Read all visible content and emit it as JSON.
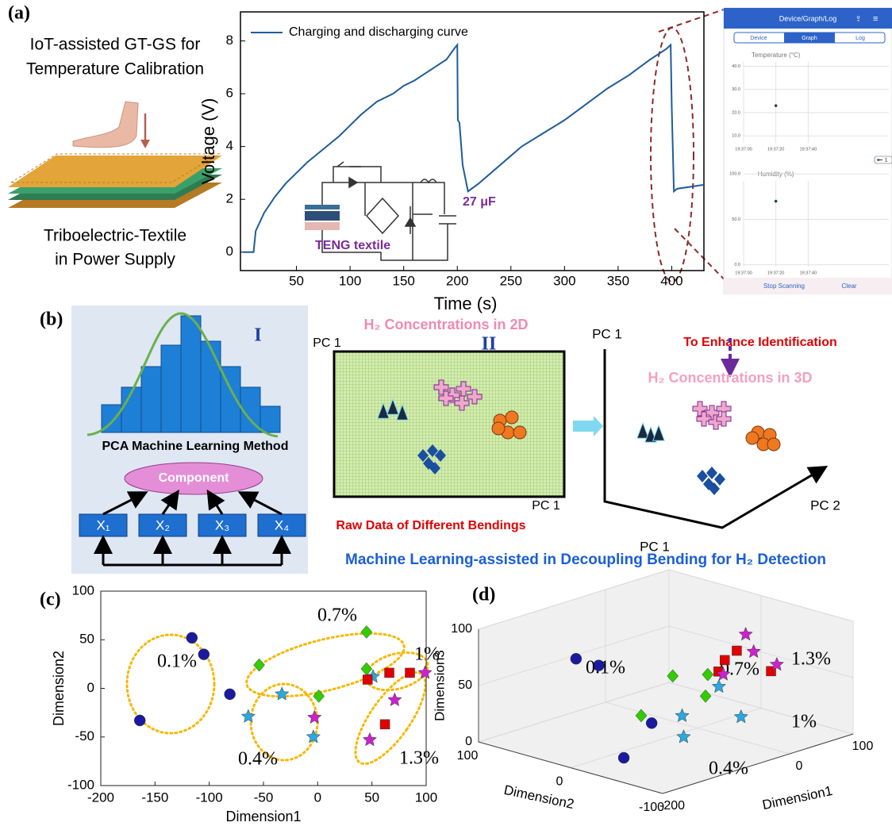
{
  "panel_labels": [
    "(a)",
    "(b)",
    "(c)",
    "(d)"
  ],
  "illustration": {
    "title_lines": [
      "IoT-assisted GT-GS for",
      "Temperature Calibration"
    ],
    "caption_lines": [
      "Triboelectric-Textile",
      "in Power Supply"
    ]
  },
  "circuit": {
    "teng_label": "TENG textile",
    "capacitor_label": "27 μF"
  },
  "phone": {
    "header": "Device/Graph/Log",
    "tabs": [
      "Device",
      "Graph",
      "Log"
    ],
    "buttons": [
      "Stop Scanning",
      "Clear"
    ]
  },
  "panel_b": {
    "roman_1": "I",
    "method": "PCA Machine Learning Method",
    "component": "Component",
    "inputs": [
      "X₁",
      "X₂",
      "X₃",
      "X₄"
    ],
    "title_2d": "H₂ Concentrations in 2D",
    "roman_2": "II",
    "axis_2d_y": "PC 1",
    "axis_2d_x": "PC 1",
    "raw_data": "Raw Data of Different Bendings",
    "axis_3d_y": "PC 1",
    "enhance": "To Enhance Identification",
    "title_3d": "H₂ Concentrations in 3D",
    "axis_3d_x": "PC 1",
    "axis_3d_z": "PC 2",
    "caption": "Machine Learning-assisted in Decoupling Bending for H₂ Detection"
  },
  "chart_data": [
    {
      "type": "line",
      "x": [
        0,
        10,
        12,
        20,
        30,
        40,
        50,
        60,
        75,
        90,
        100,
        110,
        125,
        140,
        150,
        160,
        175,
        190,
        197,
        200,
        200.5,
        202,
        205,
        210,
        220,
        240,
        260,
        280,
        300,
        320,
        340,
        360,
        380,
        395,
        399,
        400,
        402,
        405,
        430
      ],
      "series": [
        {
          "name": "Charging and discharging curve",
          "color": "#1f5c99",
          "values": [
            0,
            0,
            0.8,
            1.5,
            2.1,
            2.6,
            3.0,
            3.4,
            3.9,
            4.4,
            4.8,
            5.2,
            5.7,
            6.0,
            6.3,
            6.5,
            6.9,
            7.3,
            7.7,
            7.85,
            5.0,
            4.9,
            3.3,
            2.3,
            2.6,
            3.3,
            4.0,
            4.5,
            5.0,
            5.6,
            6.2,
            6.7,
            7.3,
            7.7,
            7.85,
            5.5,
            2.3,
            2.4,
            2.55
          ]
        }
      ],
      "xlabel": "Time (s)",
      "ylabel": "Voltage (V)",
      "xlim": [
        0,
        430
      ],
      "ylim": [
        -0.7,
        9.1
      ],
      "xticks": [
        50,
        100,
        150,
        200,
        250,
        300,
        350,
        400
      ],
      "yticks": [
        0,
        2,
        4,
        6,
        8
      ],
      "legend": "upper left"
    },
    {
      "type": "scatter",
      "title": "Temperature (°C)",
      "categories": [
        "19:37:00",
        "19:37:20",
        "19:37:40"
      ],
      "series": [
        {
          "name": "1",
          "color": "#1d4d3c",
          "values": [
            null,
            23,
            null
          ]
        }
      ],
      "ylim": [
        7,
        48
      ],
      "yticks": [
        {
          "value": 10,
          "label": "10.0"
        },
        {
          "value": 20,
          "label": "20.0"
        },
        {
          "value": 30,
          "label": "30.0"
        },
        {
          "value": 40,
          "label": "40.0"
        }
      ],
      "grid": true,
      "legend": "lower right"
    },
    {
      "type": "scatter",
      "title": "Humidity (%)",
      "categories": [
        "19:37:00",
        "19:37:20",
        "19:37:40"
      ],
      "series": [
        {
          "color": "#1d4d3c",
          "values": [
            null,
            70,
            null
          ]
        }
      ],
      "ylim": [
        -2,
        108
      ],
      "yticks": [
        {
          "value": 0,
          "label": "0.0"
        },
        {
          "value": 50,
          "label": "50.0"
        },
        {
          "value": 100,
          "label": "100.0"
        }
      ],
      "grid": true
    },
    {
      "type": "scatter",
      "xlabel": "Dimension1",
      "ylabel": "Dimension2",
      "xlim": [
        -200,
        100
      ],
      "ylim": [
        -100,
        100
      ],
      "xticks": [
        -200,
        -150,
        -100,
        -50,
        0,
        50,
        100
      ],
      "yticks": [
        -100,
        -50,
        0,
        50,
        100
      ],
      "series": [
        {
          "name": "0.1%",
          "color": "#1a1aa0",
          "marker": "circle",
          "x": [
            -116,
            -105,
            -81,
            -164
          ],
          "values": [
            52,
            35,
            -6,
            -33
          ]
        },
        {
          "name": "0.4%",
          "color": "#2aa8e0",
          "marker": "star",
          "x": [
            -64,
            -33,
            -4,
            51
          ],
          "values": [
            -29,
            -6,
            -50,
            12
          ]
        },
        {
          "name": "0.7%",
          "color": "#33cc00",
          "marker": "diamond",
          "x": [
            -54,
            1,
            45,
            45
          ],
          "values": [
            24,
            -8,
            58,
            20
          ]
        },
        {
          "name": "1%",
          "color": "#e00000",
          "marker": "square",
          "x": [
            46,
            66,
            85,
            62
          ],
          "values": [
            9,
            16,
            16,
            -37
          ]
        },
        {
          "name": "1.3%",
          "color": "#cc22cc",
          "marker": "star",
          "x": [
            -3,
            48,
            71,
            99
          ],
          "values": [
            -30,
            -53,
            -12,
            16
          ]
        }
      ]
    },
    {
      "type": "scatter3d",
      "xlabel": "Dimension1",
      "ylabel": "Dimension2",
      "zlabel": "Dimension3",
      "xlim": [
        -200,
        100
      ],
      "ylim": [
        -100,
        100
      ],
      "zlim": [
        0,
        100
      ],
      "xticks": [
        -200,
        0,
        100
      ],
      "yticks": [
        -100,
        0,
        100
      ],
      "zticks": [
        0,
        50,
        100
      ],
      "series": [
        {
          "name": "0.1%",
          "color": "#1a1aa0",
          "marker": "circle",
          "x": [
            -116,
            -105,
            -81,
            -164
          ],
          "y": [
            52,
            35,
            -6,
            -33
          ],
          "z": [
            70,
            66,
            20,
            10
          ]
        },
        {
          "name": "0.4%",
          "color": "#2aa8e0",
          "marker": "star",
          "x": [
            -64,
            -33,
            -4,
            51
          ],
          "y": [
            -29,
            -6,
            -50,
            12
          ],
          "z": [
            10,
            18,
            22,
            25
          ]
        },
        {
          "name": "0.7%",
          "color": "#33cc00",
          "marker": "diamond",
          "x": [
            -54,
            1,
            45,
            45
          ],
          "y": [
            24,
            -8,
            58,
            20
          ],
          "z": [
            15,
            30,
            25,
            35
          ]
        },
        {
          "name": "1%",
          "color": "#e00000",
          "marker": "square",
          "x": [
            46,
            66,
            85,
            62
          ],
          "y": [
            9,
            16,
            16,
            -37
          ],
          "z": [
            40,
            45,
            50,
            48
          ]
        },
        {
          "name": "1.3%",
          "color": "#cc22cc",
          "marker": "star",
          "x": [
            -3,
            48,
            71,
            99
          ],
          "y": [
            -30,
            -53,
            -12,
            16
          ],
          "z": [
            55,
            60,
            58,
            62
          ]
        }
      ]
    }
  ]
}
